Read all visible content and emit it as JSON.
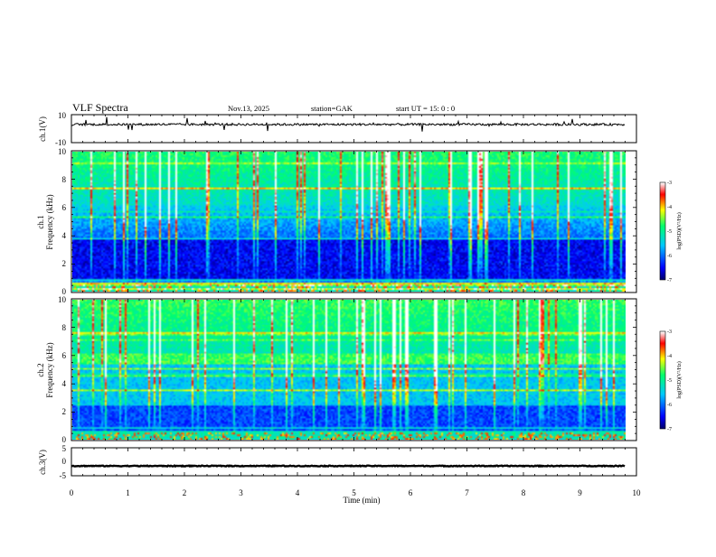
{
  "header": {
    "title": "VLF  Spectra",
    "date": "Nov.13, 2025",
    "station": "station=GAK",
    "start": "start  UT =   15: 0   : 0"
  },
  "chart_data": [
    {
      "type": "line",
      "name": "ch1-waveform",
      "ylabel": "ch.1(V)",
      "ylim": [
        -10,
        10
      ],
      "yticks": [
        "10",
        "-10"
      ],
      "baseline": 3,
      "xlim": [
        0,
        10
      ]
    },
    {
      "type": "heatmap",
      "name": "ch1-spectrogram",
      "ylabel_top": "ch.1",
      "ylabel": "Frequency (kHz)",
      "ylim": [
        0,
        10
      ],
      "yticks": [
        "0",
        "2",
        "4",
        "6",
        "8",
        "10"
      ],
      "xlim": [
        0,
        9.8
      ],
      "colorbar": {
        "label": "log(PSD)(V²/Hz)",
        "range": [
          -7,
          -3
        ],
        "ticks": [
          "-3",
          "-4",
          "-5",
          "-6",
          "-7"
        ]
      }
    },
    {
      "type": "heatmap",
      "name": "ch2-spectrogram",
      "ylabel_top": "ch.2",
      "ylabel": "Frequency (kHz)",
      "ylim": [
        0,
        10
      ],
      "yticks": [
        "0",
        "2",
        "4",
        "6",
        "8",
        "10"
      ],
      "xlim": [
        0,
        9.8
      ],
      "colorbar": {
        "label": "log(PSD)(V²/Hz)",
        "range": [
          -7,
          -3
        ],
        "ticks": [
          "-3",
          "-4",
          "-5",
          "-6",
          "-7"
        ]
      }
    },
    {
      "type": "line",
      "name": "ch3-waveform",
      "ylabel": "ch.3(V)",
      "ylim": [
        -5,
        5
      ],
      "yticks": [
        "5",
        "0",
        "-5"
      ],
      "baseline": -1.5,
      "xlim": [
        0,
        10
      ]
    }
  ],
  "xaxis": {
    "label": "Time  (min)",
    "ticks": [
      "0",
      "1",
      "2",
      "3",
      "4",
      "5",
      "6",
      "7",
      "8",
      "9",
      "10"
    ],
    "range": [
      0,
      10
    ]
  },
  "colors": {
    "colormap": [
      "#000080",
      "#0000ff",
      "#00c8ff",
      "#00ff64",
      "#ffff00",
      "#ff0000",
      "#ffffff"
    ]
  }
}
